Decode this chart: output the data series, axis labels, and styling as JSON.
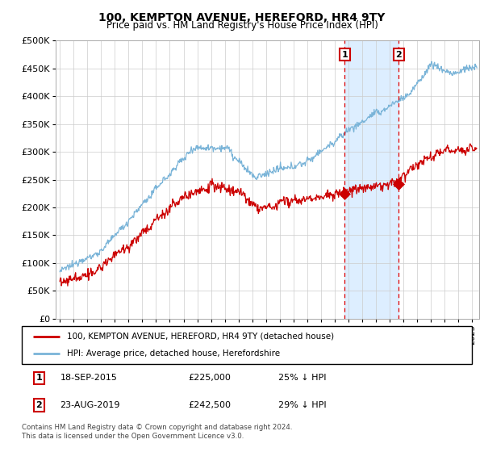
{
  "title": "100, KEMPTON AVENUE, HEREFORD, HR4 9TY",
  "subtitle": "Price paid vs. HM Land Registry's House Price Index (HPI)",
  "ylabel_ticks": [
    "£0",
    "£50K",
    "£100K",
    "£150K",
    "£200K",
    "£250K",
    "£300K",
    "£350K",
    "£400K",
    "£450K",
    "£500K"
  ],
  "ytick_values": [
    0,
    50000,
    100000,
    150000,
    200000,
    250000,
    300000,
    350000,
    400000,
    450000,
    500000
  ],
  "ylim": [
    0,
    500000
  ],
  "xlim_start": 1994.7,
  "xlim_end": 2025.5,
  "hpi_color": "#7ab4d8",
  "price_color": "#cc0000",
  "marker1_date": 2015.72,
  "marker1_price": 225000,
  "marker2_date": 2019.65,
  "marker2_price": 242500,
  "legend_line1": "100, KEMPTON AVENUE, HEREFORD, HR4 9TY (detached house)",
  "legend_line2": "HPI: Average price, detached house, Herefordshire",
  "footnote": "Contains HM Land Registry data © Crown copyright and database right 2024.\nThis data is licensed under the Open Government Licence v3.0.",
  "shade_color": "#ddeeff",
  "background_color": "#ffffff",
  "grid_color": "#cccccc",
  "n_points": 740
}
